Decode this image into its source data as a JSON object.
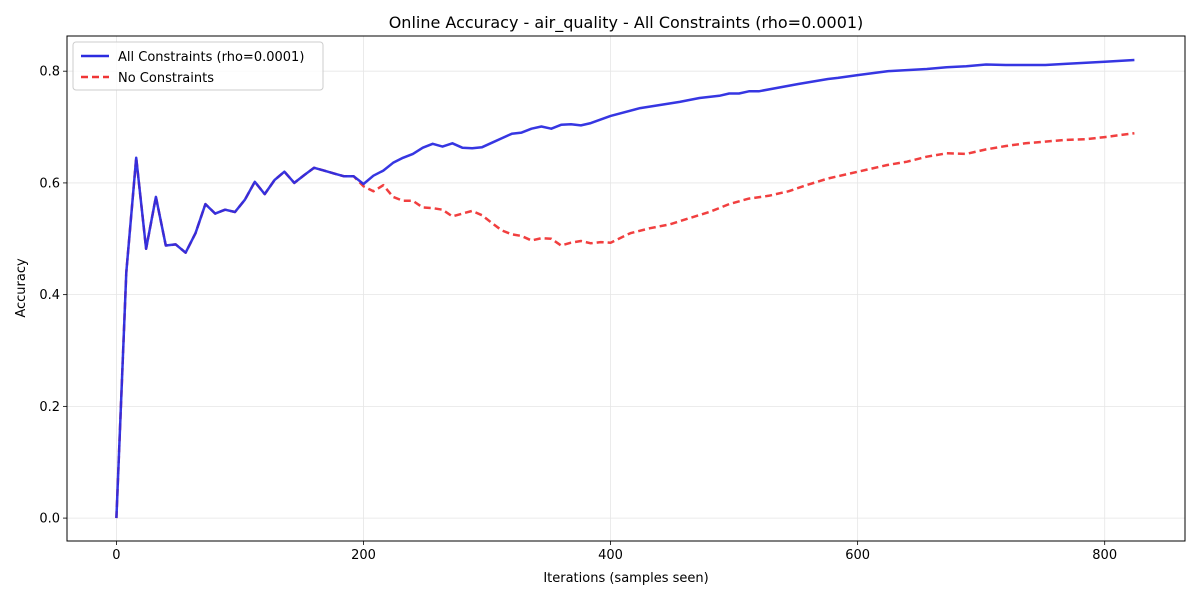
{
  "chart_data": {
    "type": "line",
    "title": "Online Accuracy - air_quality - All Constraints (rho=0.0001)",
    "xlabel": "Iterations (samples seen)",
    "ylabel": "Accuracy",
    "xlim": [
      -40,
      865
    ],
    "ylim": [
      -0.041,
      0.863
    ],
    "xticks": [
      0,
      200,
      400,
      600,
      800
    ],
    "xtick_labels": [
      "0",
      "200",
      "400",
      "600",
      "800"
    ],
    "yticks": [
      0.0,
      0.2,
      0.4,
      0.6,
      0.8
    ],
    "ytick_labels": [
      "0.0",
      "0.2",
      "0.4",
      "0.6",
      "0.8"
    ],
    "grid": true,
    "legend_position": "top-left",
    "series": [
      {
        "name": "All Constraints (rho=0.0001)",
        "color": "#2b2be0",
        "style": "solid",
        "x": [
          0,
          8,
          16,
          24,
          32,
          40,
          48,
          56,
          64,
          72,
          80,
          88,
          96,
          104,
          112,
          120,
          128,
          136,
          144,
          152,
          160,
          168,
          176,
          184,
          192,
          200,
          208,
          216,
          224,
          232,
          240,
          248,
          256,
          264,
          272,
          280,
          288,
          296,
          304,
          312,
          320,
          328,
          336,
          344,
          352,
          360,
          368,
          376,
          384,
          400,
          424,
          456,
          472,
          488,
          496,
          504,
          512,
          520,
          552,
          576,
          584,
          600,
          624,
          656,
          672,
          688,
          704,
          720,
          736,
          752,
          768,
          800,
          824
        ],
        "y": [
          0.0,
          0.44,
          0.645,
          0.482,
          0.575,
          0.488,
          0.49,
          0.475,
          0.51,
          0.562,
          0.545,
          0.552,
          0.548,
          0.57,
          0.602,
          0.58,
          0.605,
          0.62,
          0.6,
          0.614,
          0.627,
          0.622,
          0.617,
          0.612,
          0.612,
          0.598,
          0.613,
          0.622,
          0.636,
          0.645,
          0.652,
          0.663,
          0.67,
          0.665,
          0.671,
          0.663,
          0.662,
          0.664,
          0.672,
          0.68,
          0.688,
          0.69,
          0.697,
          0.701,
          0.697,
          0.704,
          0.705,
          0.703,
          0.707,
          0.72,
          0.734,
          0.745,
          0.752,
          0.756,
          0.76,
          0.76,
          0.764,
          0.764,
          0.777,
          0.786,
          0.788,
          0.793,
          0.8,
          0.804,
          0.807,
          0.809,
          0.812,
          0.811,
          0.811,
          0.811,
          0.813,
          0.817,
          0.82
        ]
      },
      {
        "name": "No Constraints",
        "color": "#f03535",
        "style": "dashed",
        "x": [
          0,
          8,
          16,
          24,
          32,
          40,
          48,
          56,
          64,
          72,
          80,
          88,
          96,
          104,
          112,
          120,
          128,
          136,
          144,
          152,
          160,
          168,
          176,
          184,
          192,
          200,
          208,
          216,
          224,
          232,
          240,
          248,
          256,
          264,
          272,
          280,
          288,
          296,
          304,
          312,
          320,
          328,
          336,
          344,
          352,
          360,
          368,
          376,
          384,
          392,
          400,
          416,
          432,
          448,
          464,
          480,
          496,
          512,
          528,
          544,
          560,
          576,
          592,
          608,
          624,
          640,
          656,
          672,
          688,
          704,
          720,
          736,
          752,
          768,
          784,
          800,
          824
        ],
        "y": [
          0.0,
          0.44,
          0.645,
          0.482,
          0.575,
          0.488,
          0.49,
          0.475,
          0.51,
          0.562,
          0.545,
          0.552,
          0.548,
          0.57,
          0.602,
          0.58,
          0.605,
          0.62,
          0.6,
          0.614,
          0.627,
          0.622,
          0.617,
          0.612,
          0.612,
          0.594,
          0.585,
          0.596,
          0.575,
          0.568,
          0.568,
          0.556,
          0.555,
          0.552,
          0.54,
          0.545,
          0.55,
          0.542,
          0.528,
          0.515,
          0.508,
          0.505,
          0.497,
          0.501,
          0.5,
          0.488,
          0.493,
          0.496,
          0.492,
          0.494,
          0.493,
          0.51,
          0.519,
          0.526,
          0.537,
          0.548,
          0.562,
          0.572,
          0.577,
          0.585,
          0.597,
          0.608,
          0.616,
          0.624,
          0.632,
          0.638,
          0.647,
          0.653,
          0.652,
          0.66,
          0.666,
          0.671,
          0.674,
          0.677,
          0.678,
          0.682,
          0.689
        ]
      }
    ]
  }
}
